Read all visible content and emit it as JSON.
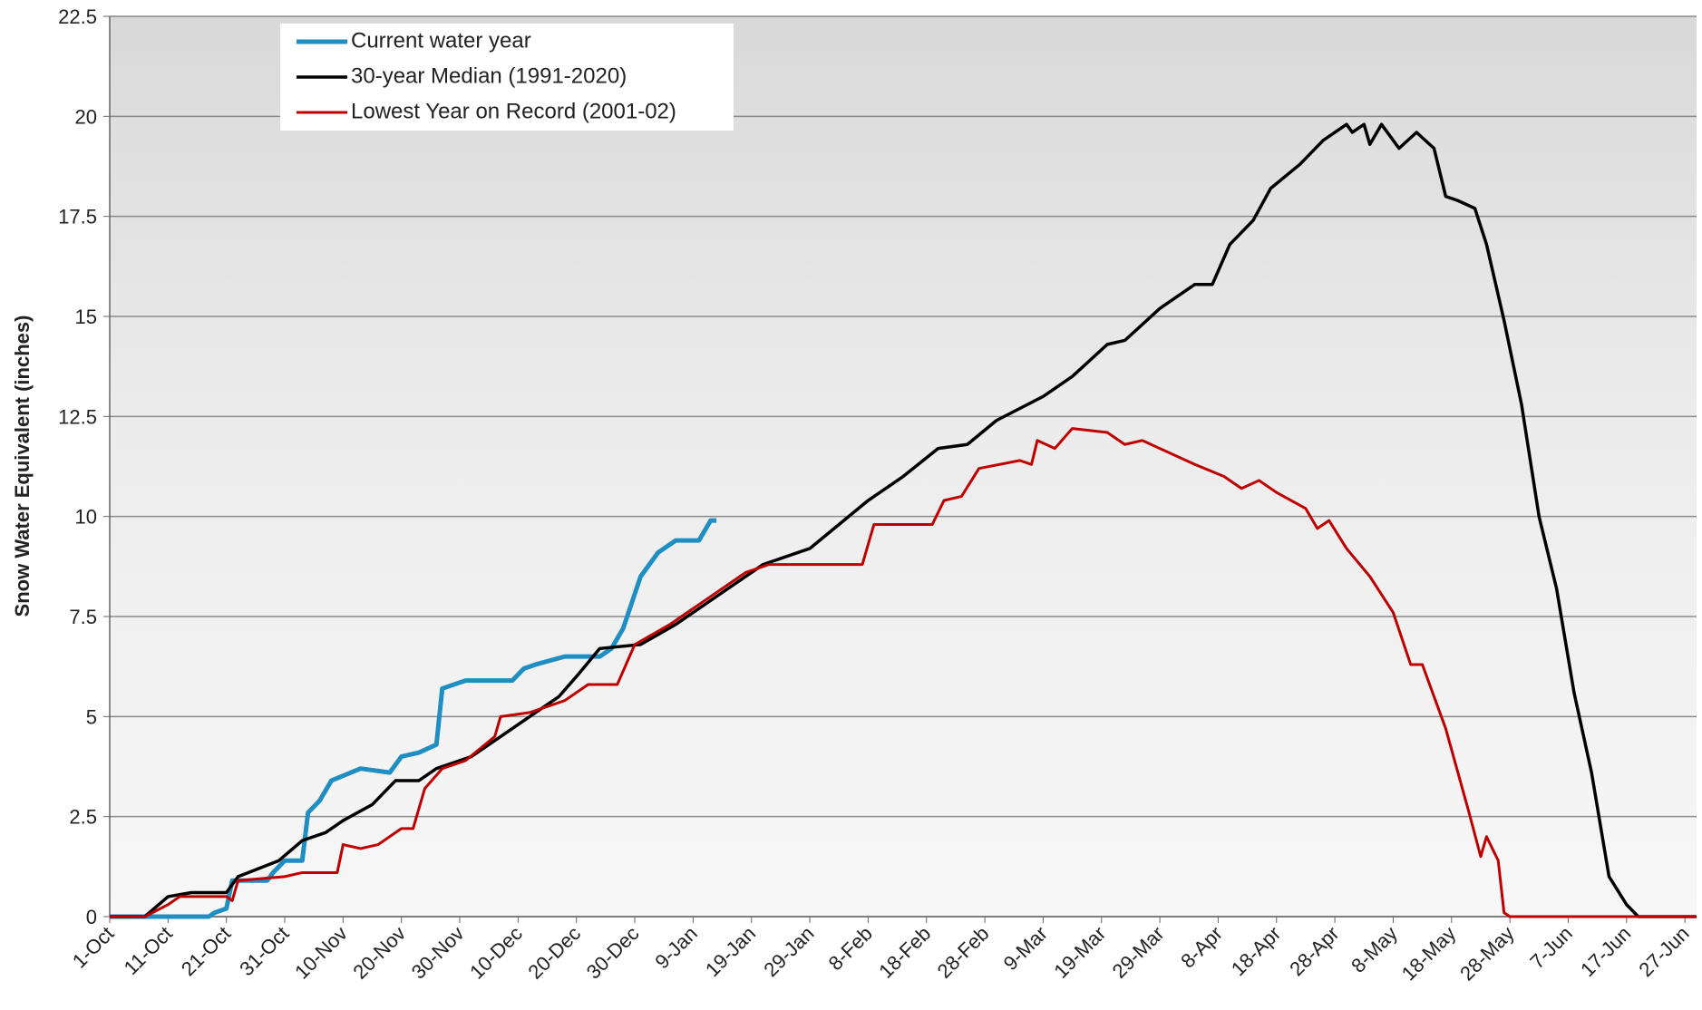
{
  "chart_data": {
    "type": "line",
    "y_label": "Snow Water Equivalent (inches)",
    "xlim": [
      0,
      272
    ],
    "xticks": [
      {
        "value": 0,
        "label": "1-Oct"
      },
      {
        "value": 10,
        "label": "11-Oct"
      },
      {
        "value": 20,
        "label": "21-Oct"
      },
      {
        "value": 30,
        "label": "31-Oct"
      },
      {
        "value": 40,
        "label": "10-Nov"
      },
      {
        "value": 50,
        "label": "20-Nov"
      },
      {
        "value": 60,
        "label": "30-Nov"
      },
      {
        "value": 70,
        "label": "10-Dec"
      },
      {
        "value": 80,
        "label": "20-Dec"
      },
      {
        "value": 90,
        "label": "30-Dec"
      },
      {
        "value": 100,
        "label": "9-Jan"
      },
      {
        "value": 110,
        "label": "19-Jan"
      },
      {
        "value": 120,
        "label": "29-Jan"
      },
      {
        "value": 130,
        "label": "8-Feb"
      },
      {
        "value": 140,
        "label": "18-Feb"
      },
      {
        "value": 150,
        "label": "28-Feb"
      },
      {
        "value": 160,
        "label": "9-Mar"
      },
      {
        "value": 170,
        "label": "19-Mar"
      },
      {
        "value": 180,
        "label": "29-Mar"
      },
      {
        "value": 190,
        "label": "8-Apr"
      },
      {
        "value": 200,
        "label": "18-Apr"
      },
      {
        "value": 210,
        "label": "28-Apr"
      },
      {
        "value": 220,
        "label": "8-May"
      },
      {
        "value": 230,
        "label": "18-May"
      },
      {
        "value": 240,
        "label": "28-May"
      },
      {
        "value": 250,
        "label": "7-Jun"
      },
      {
        "value": 260,
        "label": "17-Jun"
      },
      {
        "value": 270,
        "label": "27-Jun"
      }
    ],
    "ylim": [
      0,
      22.5
    ],
    "yticks": [
      0,
      2.5,
      5,
      7.5,
      10,
      12.5,
      15,
      17.5,
      20,
      22.5
    ],
    "grid": true,
    "legend": "upper-left",
    "series": [
      {
        "name": "Current water year",
        "color": "#1f8ec2",
        "width": 5,
        "x": [
          0,
          17,
          18,
          20,
          21,
          27,
          28,
          30,
          33,
          34,
          36,
          38,
          43,
          48,
          50,
          53,
          56,
          57,
          61,
          69,
          71,
          73,
          78,
          84,
          86,
          88,
          91,
          94,
          97,
          101,
          103,
          104
        ],
        "values": [
          0,
          0,
          0.1,
          0.2,
          0.9,
          0.9,
          1.1,
          1.4,
          1.4,
          2.6,
          2.9,
          3.4,
          3.7,
          3.6,
          4.0,
          4.1,
          4.3,
          5.7,
          5.9,
          5.9,
          6.2,
          6.3,
          6.5,
          6.5,
          6.7,
          7.2,
          8.5,
          9.1,
          9.4,
          9.4,
          9.9,
          9.9
        ]
      },
      {
        "name": "30-year Median (1991-2020)",
        "color": "#000000",
        "width": 3.5,
        "x": [
          0,
          6,
          10,
          14,
          20,
          22,
          29,
          33,
          37,
          40,
          45,
          49,
          53,
          56,
          62,
          67,
          72,
          77,
          80,
          84,
          91,
          97,
          101,
          106,
          112,
          120,
          125,
          130,
          136,
          142,
          147,
          152,
          160,
          165,
          171,
          174,
          180,
          186,
          189,
          192,
          196,
          199,
          204,
          208,
          212,
          213,
          215,
          216,
          218,
          221,
          224,
          227,
          229,
          231,
          234,
          236,
          239,
          242,
          245,
          248,
          251,
          254,
          257,
          260,
          262,
          263,
          272
        ],
        "values": [
          0,
          0,
          0.5,
          0.6,
          0.6,
          1.0,
          1.4,
          1.9,
          2.1,
          2.4,
          2.8,
          3.4,
          3.4,
          3.7,
          4.0,
          4.5,
          5.0,
          5.5,
          6.0,
          6.7,
          6.8,
          7.3,
          7.7,
          8.2,
          8.8,
          9.2,
          9.8,
          10.4,
          11.0,
          11.7,
          11.8,
          12.4,
          13.0,
          13.5,
          14.3,
          14.4,
          15.2,
          15.8,
          15.8,
          16.8,
          17.4,
          18.2,
          18.8,
          19.4,
          19.8,
          19.6,
          19.8,
          19.3,
          19.8,
          19.2,
          19.6,
          19.2,
          18.0,
          17.9,
          17.7,
          16.8,
          14.9,
          12.8,
          10.0,
          8.2,
          5.6,
          3.6,
          1.0,
          0.3,
          0,
          0,
          0
        ]
      },
      {
        "name": "Lowest Year on Record (2001-02)",
        "color": "#c00000",
        "width": 3,
        "x": [
          0,
          6,
          10,
          12,
          20,
          21,
          22,
          30,
          33,
          39,
          40,
          43,
          46,
          50,
          52,
          54,
          57,
          61,
          66,
          67,
          72,
          78,
          82,
          87,
          90,
          96,
          103,
          109,
          113,
          129,
          131,
          141,
          143,
          146,
          149,
          156,
          158,
          159,
          162,
          165,
          171,
          174,
          177,
          186,
          191,
          194,
          197,
          200,
          205,
          207,
          209,
          212,
          216,
          220,
          223,
          225,
          229,
          233,
          235,
          236,
          238,
          239,
          240,
          272
        ],
        "values": [
          0,
          0,
          0.3,
          0.5,
          0.5,
          0.4,
          0.9,
          1.0,
          1.1,
          1.1,
          1.8,
          1.7,
          1.8,
          2.2,
          2.2,
          3.2,
          3.7,
          3.9,
          4.5,
          5.0,
          5.1,
          5.4,
          5.8,
          5.8,
          6.8,
          7.3,
          8.0,
          8.6,
          8.8,
          8.8,
          9.8,
          9.8,
          10.4,
          10.5,
          11.2,
          11.4,
          11.3,
          11.9,
          11.7,
          12.2,
          12.1,
          11.8,
          11.9,
          11.3,
          11.0,
          10.7,
          10.9,
          10.6,
          10.2,
          9.7,
          9.9,
          9.2,
          8.5,
          7.6,
          6.3,
          6.3,
          4.7,
          2.6,
          1.5,
          2.0,
          1.4,
          0.1,
          0,
          0
        ]
      }
    ]
  }
}
